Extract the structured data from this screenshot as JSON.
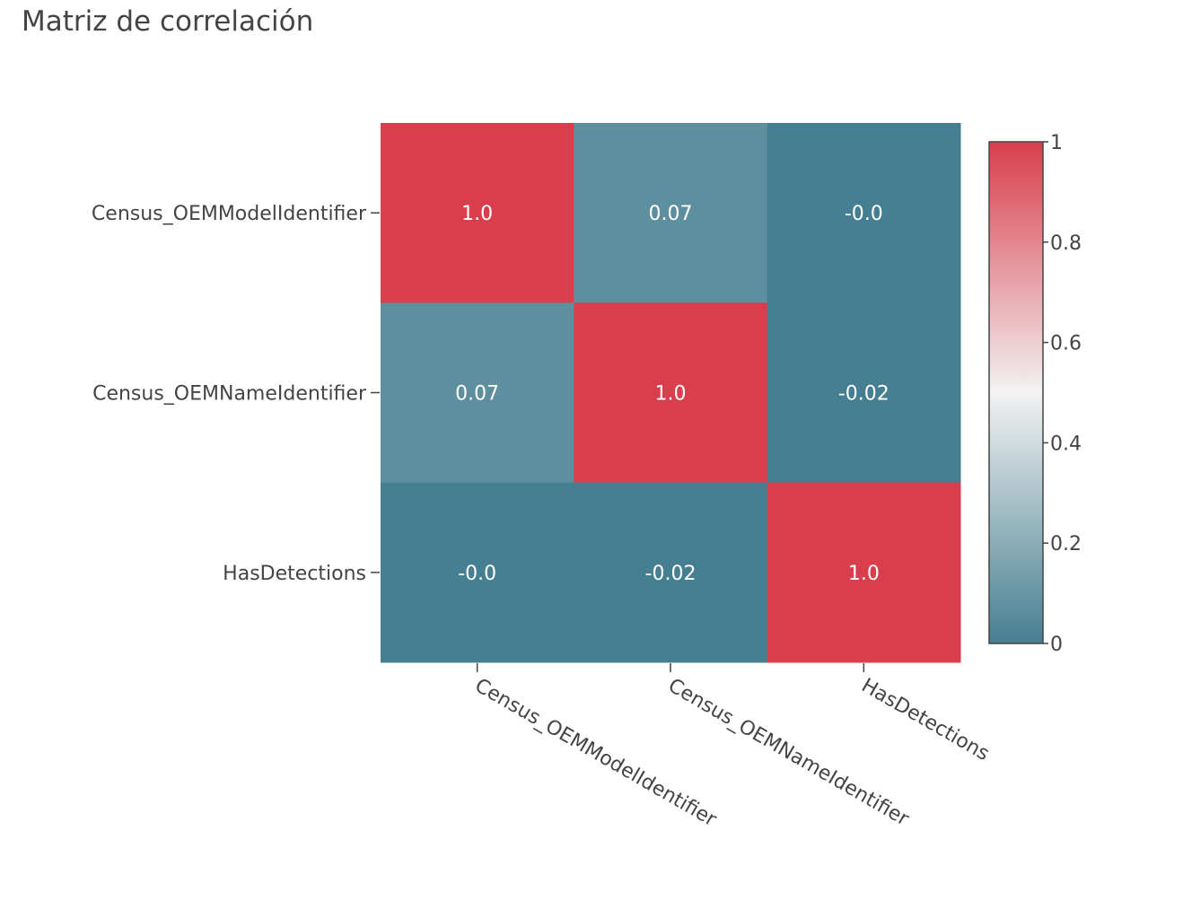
{
  "chart_data": {
    "type": "heatmap",
    "title": "Matriz de correlación",
    "x_categories": [
      "Census_OEMModelIdentifier",
      "Census_OEMNameIdentifier",
      "HasDetections"
    ],
    "y_categories": [
      "Census_OEMModelIdentifier",
      "Census_OEMNameIdentifier",
      "HasDetections"
    ],
    "values": [
      [
        1.0,
        0.07,
        -0.0
      ],
      [
        0.07,
        1.0,
        -0.02
      ],
      [
        -0.0,
        -0.02,
        1.0
      ]
    ],
    "cell_labels": [
      [
        "1.0",
        "0.07",
        "-0.0"
      ],
      [
        "0.07",
        "1.0",
        "-0.02"
      ],
      [
        "-0.0",
        "-0.02",
        "1.0"
      ]
    ],
    "colorscale": {
      "low": "#467f91",
      "mid": "#f2f2f2",
      "high": "#d93e4c"
    },
    "colorbar": {
      "range": [
        0,
        1
      ],
      "ticks": [
        "0",
        "0.2",
        "0.4",
        "0.6",
        "0.8",
        "1"
      ]
    },
    "xlabel": "",
    "ylabel": ""
  }
}
